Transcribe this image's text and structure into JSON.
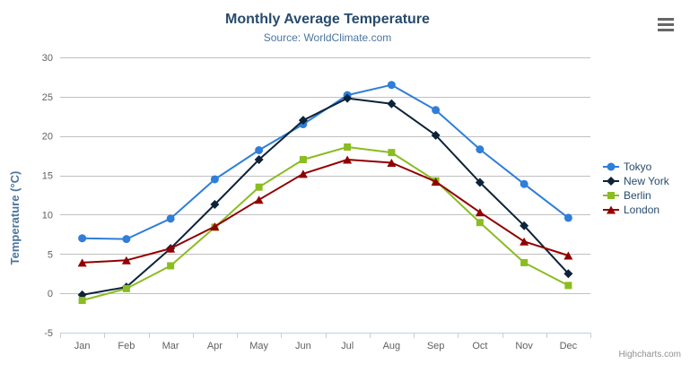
{
  "header": {
    "menu_icon": "hamburger-menu-icon"
  },
  "credits": "Highcharts.com",
  "colors": {
    "title": "#274b6d",
    "subtitle": "#4d759e",
    "axis_label": "#606060",
    "axis_line": "#c0d0e0",
    "grid": "#c0c0c0",
    "legend_text": "#274b6d",
    "credits": "#909090",
    "menu_button": "#666666"
  },
  "chart_data": {
    "type": "line",
    "title": "Monthly Average Temperature",
    "subtitle": "Source: WorldClimate.com",
    "xlabel": "",
    "ylabel": "Temperature (°C)",
    "categories": [
      "Jan",
      "Feb",
      "Mar",
      "Apr",
      "May",
      "Jun",
      "Jul",
      "Aug",
      "Sep",
      "Oct",
      "Nov",
      "Dec"
    ],
    "y_ticks": [
      30,
      25,
      20,
      15,
      10,
      5,
      0,
      -5
    ],
    "ylim": [
      -5,
      30
    ],
    "grid": true,
    "legend_position": "right",
    "series": [
      {
        "name": "Tokyo",
        "color": "#2f7ed8",
        "marker": "circle",
        "values": [
          7.0,
          6.9,
          9.5,
          14.5,
          18.2,
          21.5,
          25.2,
          26.5,
          23.3,
          18.3,
          13.9,
          9.6
        ]
      },
      {
        "name": "New York",
        "color": "#0d233a",
        "marker": "diamond",
        "values": [
          -0.2,
          0.8,
          5.7,
          11.3,
          17.0,
          22.0,
          24.8,
          24.1,
          20.1,
          14.1,
          8.6,
          2.5
        ]
      },
      {
        "name": "Berlin",
        "color": "#8bbc21",
        "marker": "square",
        "values": [
          -0.9,
          0.6,
          3.5,
          8.4,
          13.5,
          17.0,
          18.6,
          17.9,
          14.3,
          9.0,
          3.9,
          1.0
        ]
      },
      {
        "name": "London",
        "color": "#910000",
        "marker": "triangle",
        "values": [
          3.9,
          4.2,
          5.7,
          8.5,
          11.9,
          15.2,
          17.0,
          16.6,
          14.2,
          10.3,
          6.6,
          4.8
        ]
      }
    ]
  }
}
